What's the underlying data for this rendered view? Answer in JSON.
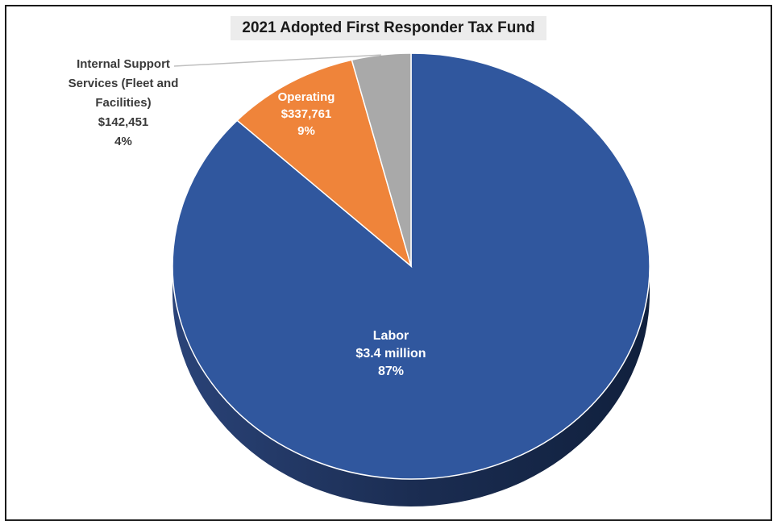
{
  "chart_data": {
    "type": "pie",
    "title": "2021 Adopted First Responder Tax Fund",
    "slices": [
      {
        "name": "Labor",
        "value": 3400000,
        "value_label": "$3.4 million",
        "percent": 87,
        "percent_label": "87%",
        "color": "#30579e"
      },
      {
        "name": "Operating",
        "value": 337761,
        "value_label": "$337,761",
        "percent": 9,
        "percent_label": "9%",
        "color": "#ef843a"
      },
      {
        "name": "Internal Support Services (Fleet and Facilities)",
        "name_lines": [
          "Internal Support",
          "Services (Fleet and",
          "Facilities)"
        ],
        "value": 142451,
        "value_label": "$142,451",
        "percent": 4,
        "percent_label": "4%",
        "color": "#a9a9a9"
      }
    ],
    "style": "3d",
    "side_color": "#1b2d52",
    "leader_color": "#bfbfbf"
  }
}
